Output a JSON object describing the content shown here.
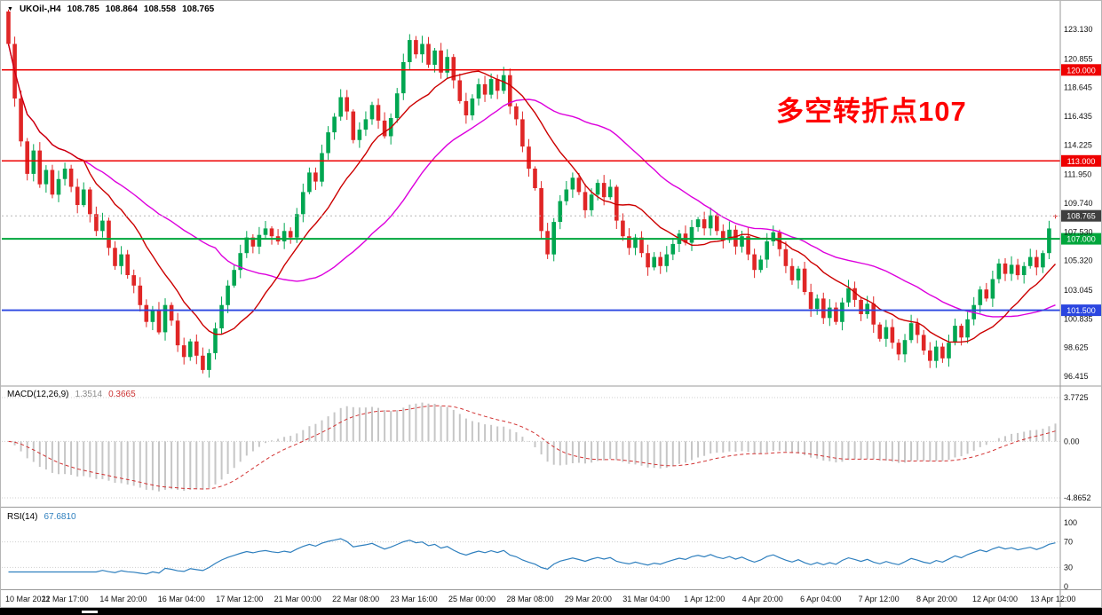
{
  "annotation": {
    "text": "多空转折点107",
    "color": "#fe0000"
  },
  "chart_data": [
    {
      "type": "candlestick",
      "title": "UKOil-,H4",
      "header": {
        "menu_icon": "▼",
        "symbol_timeframe": "UKOil-,H4",
        "open": "108.785",
        "high": "108.864",
        "low": "108.558",
        "close": "108.765"
      },
      "y_ticks": [
        "123.130",
        "120.855",
        "118.645",
        "116.435",
        "114.225",
        "111.950",
        "109.740",
        "107.530",
        "105.320",
        "103.045",
        "100.835",
        "98.625",
        "96.415"
      ],
      "ylim": [
        95.8,
        125.0
      ],
      "x_labels": [
        "10 Mar 2022",
        "11 Mar 17:00",
        "14 Mar 20:00",
        "16 Mar 04:00",
        "17 Mar 12:00",
        "21 Mar 00:00",
        "22 Mar 08:00",
        "23 Mar 16:00",
        "25 Mar 00:00",
        "28 Mar 08:00",
        "29 Mar 20:00",
        "31 Mar 04:00",
        "1 Apr 12:00",
        "4 Apr 20:00",
        "6 Apr 04:00",
        "7 Apr 12:00",
        "8 Apr 20:00",
        "12 Apr 04:00",
        "13 Apr 12:00"
      ],
      "first_open": 124.5,
      "closes": [
        122.0,
        117.8,
        114.5,
        112.0,
        113.8,
        111.2,
        112.3,
        110.4,
        111.6,
        112.4,
        111.0,
        109.6,
        110.8,
        108.9,
        107.6,
        108.4,
        106.3,
        104.9,
        105.8,
        104.2,
        103.4,
        101.9,
        100.6,
        101.5,
        99.8,
        101.9,
        100.7,
        98.8,
        97.9,
        99.1,
        98.0,
        96.9,
        98.2,
        100.1,
        101.9,
        103.4,
        104.6,
        105.9,
        107.1,
        106.4,
        107.3,
        107.8,
        107.2,
        106.8,
        107.6,
        107.1,
        108.9,
        110.6,
        112.1,
        111.4,
        113.6,
        115.2,
        116.4,
        117.9,
        116.8,
        114.6,
        115.4,
        116.2,
        117.3,
        116.1,
        114.9,
        116.3,
        118.2,
        120.6,
        122.3,
        121.2,
        122.0,
        120.4,
        121.5,
        119.8,
        121.0,
        119.2,
        117.6,
        116.5,
        117.8,
        118.9,
        118.1,
        119.3,
        118.4,
        119.6,
        117.2,
        116.2,
        114.1,
        112.4,
        110.9,
        107.6,
        105.8,
        108.3,
        109.9,
        110.8,
        111.7,
        110.6,
        109.2,
        110.4,
        111.3,
        110.2,
        111.0,
        108.4,
        107.2,
        106.3,
        107.1,
        105.9,
        104.8,
        105.6,
        104.9,
        105.8,
        106.6,
        107.4,
        106.7,
        107.9,
        108.5,
        107.8,
        108.8,
        107.6,
        106.9,
        107.7,
        106.4,
        107.2,
        105.8,
        104.6,
        105.4,
        106.8,
        107.5,
        106.2,
        104.9,
        103.8,
        104.7,
        102.9,
        101.6,
        102.4,
        100.9,
        101.7,
        100.6,
        102.1,
        103.2,
        102.3,
        101.2,
        102.0,
        100.4,
        99.3,
        100.2,
        99.0,
        98.1,
        99.2,
        100.5,
        99.6,
        98.4,
        97.6,
        98.7,
        97.8,
        99.0,
        100.3,
        99.4,
        100.8,
        101.9,
        103.1,
        102.4,
        103.9,
        105.1,
        104.3,
        105.0,
        104.2,
        104.9,
        105.6,
        104.8,
        105.9,
        107.8,
        108.765
      ],
      "last_candle": {
        "open": 108.785,
        "high": 108.864,
        "low": 108.558,
        "close": 108.765
      },
      "levels": [
        {
          "value": 120.0,
          "label": "120.000",
          "color": "#ee0000",
          "width": 1.5
        },
        {
          "value": 113.0,
          "label": "113.000",
          "color": "#ee0000",
          "width": 1.5
        },
        {
          "value": 107.0,
          "label": "107.000",
          "color": "#00a63c",
          "width": 2
        },
        {
          "value": 101.5,
          "label": "101.500",
          "color": "#2b46e0",
          "width": 1.8
        }
      ],
      "current_price": {
        "value": 108.765,
        "label": "108.765",
        "bg": "#3f3f3f"
      },
      "moving_averages": [
        {
          "period": 34,
          "color": "#dd00dd"
        },
        {
          "period": 13,
          "color": "#cc0000"
        }
      ],
      "candle_colors": {
        "up": "#00a651",
        "down": "#e02626"
      }
    },
    {
      "type": "macd",
      "label": "MACD(12,26,9)",
      "values": {
        "macd": "1.3514",
        "signal": "0.3665"
      },
      "params": {
        "fast": 12,
        "slow": 26,
        "signal": 9
      },
      "y_ticks": [
        "3.7725",
        "0.00",
        "-4.8652"
      ],
      "ylim": [
        -4.8652,
        3.7725
      ],
      "colors": {
        "histogram": "#c6c6c6",
        "signal": "#d23333"
      }
    },
    {
      "type": "rsi",
      "label": "RSI(14)",
      "value": "67.6810",
      "period": 14,
      "y_ticks": [
        "100",
        "70",
        "30",
        "0"
      ],
      "levels": [
        70,
        30
      ],
      "ylim": [
        0,
        100
      ],
      "color": "#2e7fbe"
    }
  ]
}
